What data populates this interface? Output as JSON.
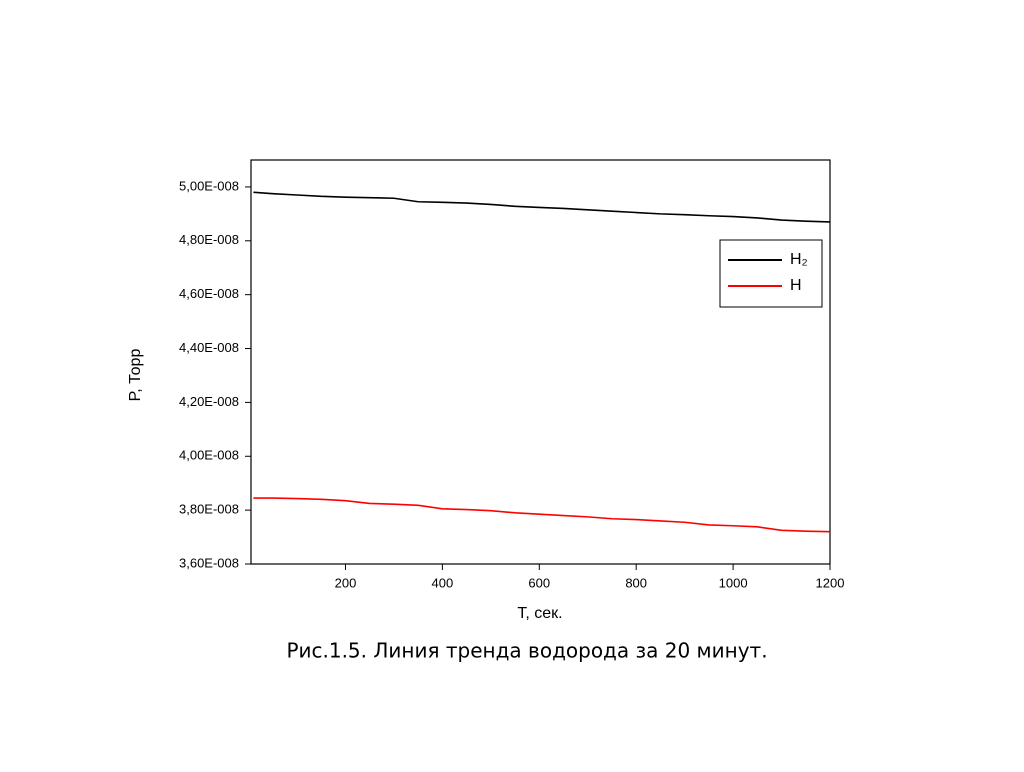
{
  "chart_data": {
    "type": "line",
    "x_label": "T, сек.",
    "y_label": "P, Торр",
    "caption": "Рис.1.5. Линия тренда водорода за 20 минут.",
    "x": [
      10,
      50,
      100,
      150,
      200,
      250,
      300,
      350,
      400,
      450,
      500,
      550,
      600,
      650,
      700,
      750,
      800,
      850,
      900,
      950,
      1000,
      1050,
      1100,
      1150,
      1200
    ],
    "series": [
      {
        "name": "H₂",
        "color": "#000000",
        "values": [
          4.98e-08,
          4.975e-08,
          4.97e-08,
          4.965e-08,
          4.962e-08,
          4.96e-08,
          4.958e-08,
          4.945e-08,
          4.943e-08,
          4.94e-08,
          4.935e-08,
          4.928e-08,
          4.924e-08,
          4.92e-08,
          4.915e-08,
          4.91e-08,
          4.905e-08,
          4.9e-08,
          4.897e-08,
          4.893e-08,
          4.89e-08,
          4.885e-08,
          4.877e-08,
          4.873e-08,
          4.87e-08
        ]
      },
      {
        "name": "H",
        "color": "#ff0000",
        "values": [
          3.845e-08,
          3.845e-08,
          3.843e-08,
          3.84e-08,
          3.835e-08,
          3.825e-08,
          3.822e-08,
          3.818e-08,
          3.805e-08,
          3.802e-08,
          3.798e-08,
          3.79e-08,
          3.785e-08,
          3.78e-08,
          3.775e-08,
          3.768e-08,
          3.765e-08,
          3.76e-08,
          3.755e-08,
          3.745e-08,
          3.742e-08,
          3.738e-08,
          3.725e-08,
          3.722e-08,
          3.72e-08
        ]
      }
    ],
    "xlim": [
      5,
      1200
    ],
    "xticks": [
      200,
      400,
      600,
      800,
      1000,
      1200
    ],
    "ylim": [
      3.6e-08,
      5.1e-08
    ],
    "yticks": [
      {
        "value": 3.6e-08,
        "label": "3,60E-008"
      },
      {
        "value": 3.8e-08,
        "label": "3,80E-008"
      },
      {
        "value": 4e-08,
        "label": "4,00E-008"
      },
      {
        "value": 4.2e-08,
        "label": "4,20E-008"
      },
      {
        "value": 4.4e-08,
        "label": "4,40E-008"
      },
      {
        "value": 4.6e-08,
        "label": "4,60E-008"
      },
      {
        "value": 4.8e-08,
        "label": "4,80E-008"
      },
      {
        "value": 5e-08,
        "label": "5,00E-008"
      }
    ],
    "legend": "upper right",
    "grid": false
  }
}
